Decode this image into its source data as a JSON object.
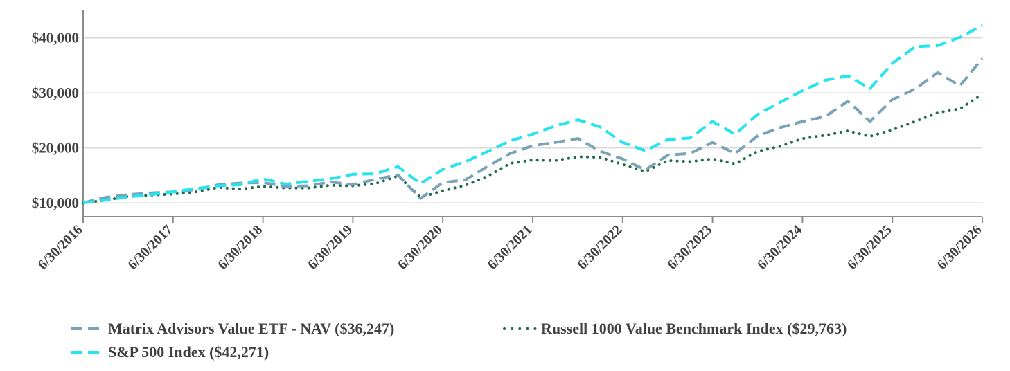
{
  "chart_data": {
    "type": "line",
    "title": "",
    "xlabel": "",
    "ylabel": "",
    "y_tick_labels": [
      "$10,000",
      "$20,000",
      "$30,000",
      "$40,000"
    ],
    "y_ticks": [
      10000,
      20000,
      30000,
      40000
    ],
    "x_tick_labels": [
      "6/30/2016",
      "6/30/2017",
      "6/30/2018",
      "6/30/2019",
      "6/30/2020",
      "6/30/2021",
      "6/30/2022",
      "6/30/2023",
      "6/30/2024",
      "6/30/2025",
      "6/30/2026"
    ],
    "xlim": [
      "2016-06-30",
      "2026-06-30"
    ],
    "ylim": [
      7500,
      45000
    ],
    "grid": "horizontal",
    "legend_position": "bottom",
    "x": [
      "2016-06-30",
      "2016-09-30",
      "2016-12-31",
      "2017-03-31",
      "2017-06-30",
      "2017-09-30",
      "2017-12-31",
      "2018-03-31",
      "2018-06-30",
      "2018-09-30",
      "2018-12-31",
      "2019-03-31",
      "2019-06-30",
      "2019-09-30",
      "2019-12-31",
      "2020-03-31",
      "2020-06-30",
      "2020-09-30",
      "2020-12-31",
      "2021-03-31",
      "2021-06-30",
      "2021-09-30",
      "2021-12-31",
      "2022-03-31",
      "2022-06-30",
      "2022-09-30",
      "2022-12-31",
      "2023-03-31",
      "2023-06-30",
      "2023-09-30",
      "2023-12-31",
      "2024-03-31",
      "2024-06-30",
      "2024-09-30",
      "2024-12-31",
      "2025-03-31",
      "2025-06-30",
      "2025-09-30",
      "2025-12-31",
      "2026-03-31",
      "2026-06-30"
    ],
    "series": [
      {
        "name": "Matrix Advisors Value ETF - NAV ($36,247)",
        "color": "#7ba3b8",
        "style": "dashed",
        "values": [
          10000,
          11000,
          11500,
          11800,
          12000,
          12400,
          13300,
          13600,
          13700,
          13000,
          13100,
          13800,
          13300,
          14300,
          15100,
          10800,
          13700,
          14200,
          16700,
          19000,
          20400,
          21000,
          21700,
          19400,
          18000,
          16000,
          18700,
          19000,
          21000,
          19000,
          22200,
          23700,
          24800,
          25700,
          28500,
          24800,
          28800,
          30700,
          33700,
          31300,
          36247
        ]
      },
      {
        "name": "Russell 1000 Value Benchmark Index ($29,763)",
        "color": "#1e6b4a",
        "style": "dotted",
        "values": [
          10000,
          10500,
          11200,
          11400,
          11600,
          12000,
          12800,
          12500,
          13000,
          12700,
          12700,
          13200,
          13100,
          13500,
          14900,
          11000,
          12200,
          13200,
          14900,
          17200,
          17800,
          17700,
          18400,
          18300,
          17000,
          15700,
          17700,
          17500,
          18000,
          17100,
          19400,
          20300,
          21700,
          22300,
          23100,
          22100,
          23300,
          24800,
          26400,
          27100,
          29763
        ]
      },
      {
        "name": "S&P 500 Index ($42,271)",
        "color": "#22e5f0",
        "style": "dashed",
        "values": [
          10000,
          10500,
          11100,
          11500,
          12000,
          12600,
          13100,
          13300,
          14400,
          13400,
          13900,
          14400,
          15200,
          15300,
          16600,
          13500,
          16100,
          17500,
          19400,
          21300,
          22500,
          24000,
          25100,
          23800,
          21000,
          19500,
          21500,
          21800,
          24800,
          22500,
          26100,
          28300,
          30400,
          32300,
          33100,
          30800,
          35400,
          38400,
          38600,
          40100,
          42271
        ]
      }
    ]
  }
}
